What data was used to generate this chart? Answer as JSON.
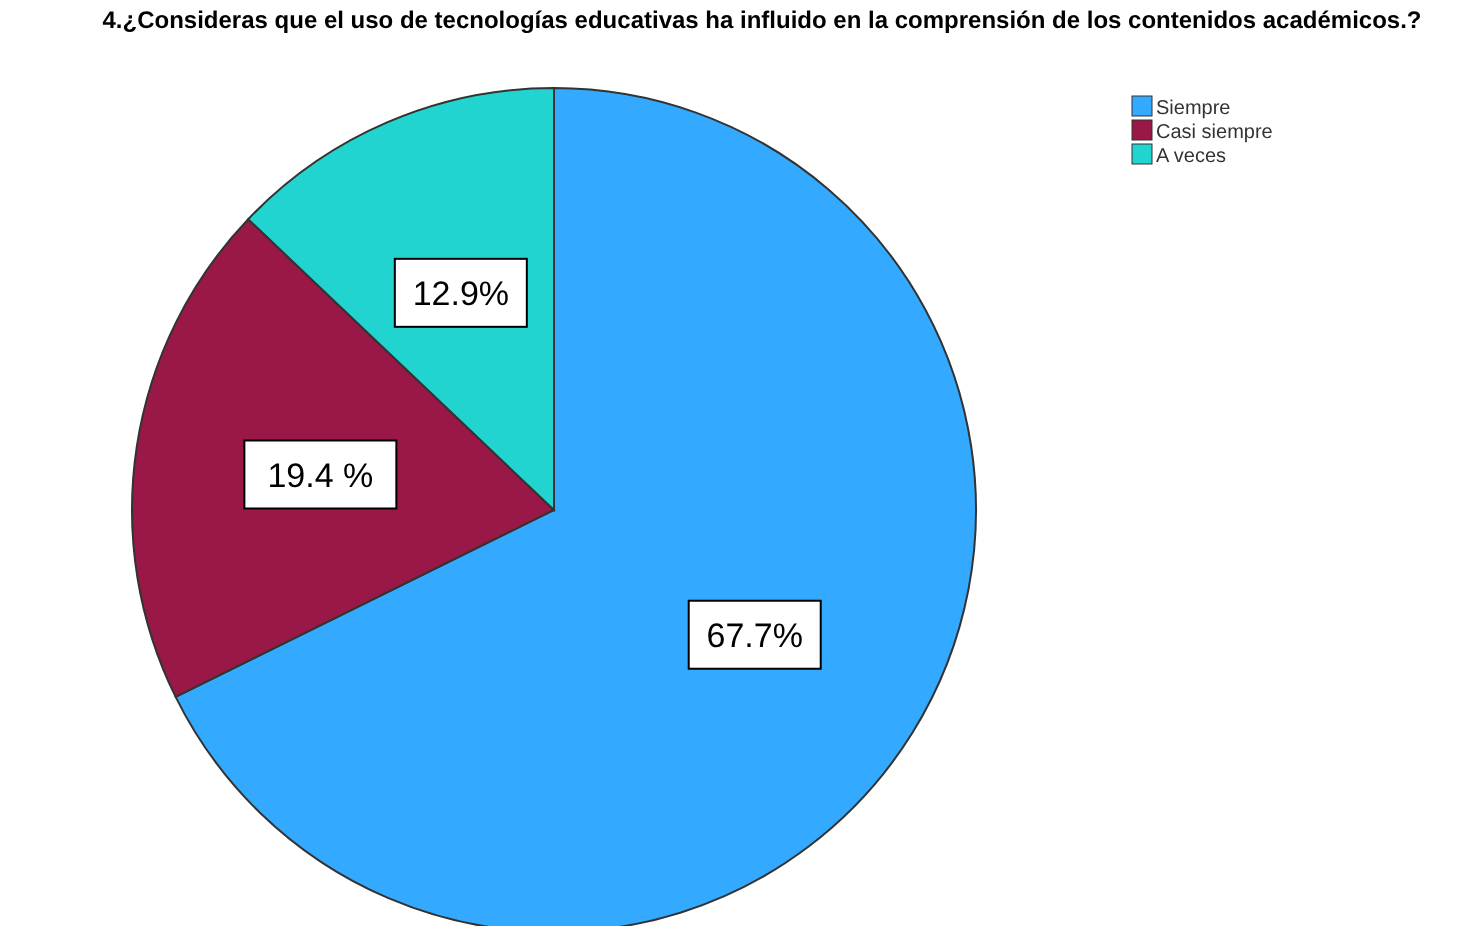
{
  "chart_data": {
    "type": "pie",
    "title": "4.¿Consideras que el uso de tecnologías educativas ha influido en la comprensión de los contenidos académicos.?",
    "categories": [
      "Siempre",
      "Casi siempre",
      "A veces"
    ],
    "values": [
      67.7,
      19.4,
      12.9
    ],
    "value_labels": [
      "67.7%",
      "19.4 %",
      "12.9%"
    ],
    "colors": [
      "#33aaff",
      "#991848",
      "#22d4d0"
    ],
    "legend": "top right"
  }
}
